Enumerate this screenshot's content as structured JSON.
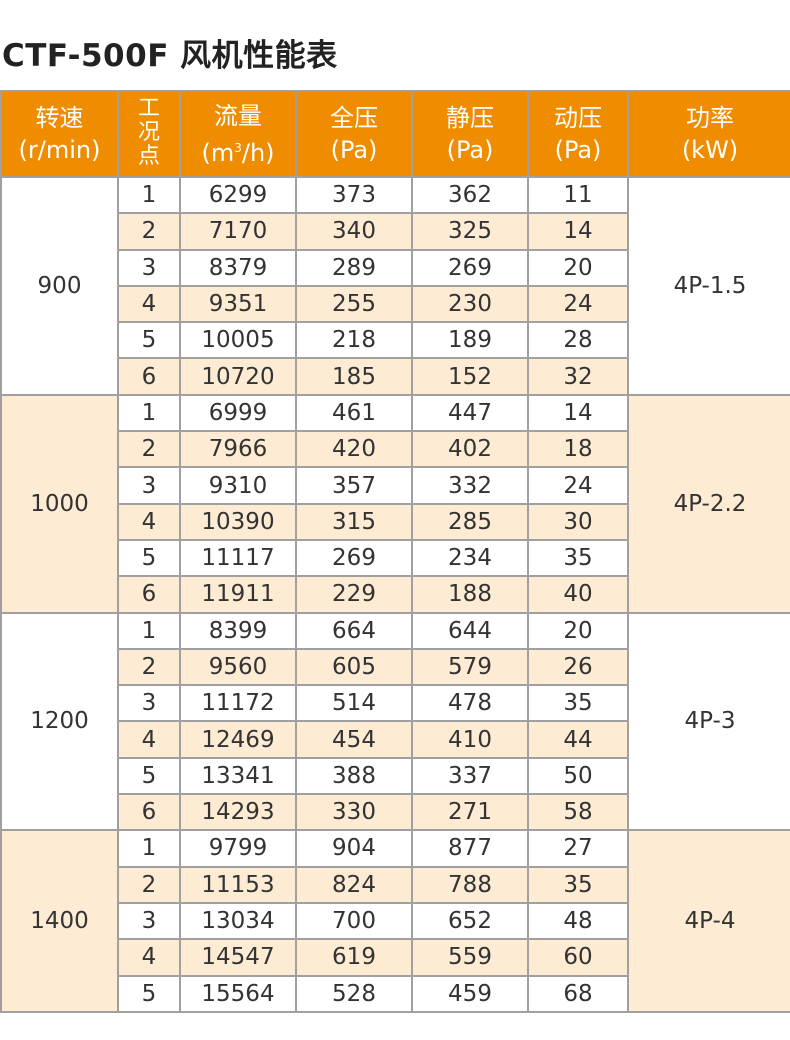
{
  "title": "CTF-500F 风机性能表",
  "colors": {
    "header_bg": "#f08c00",
    "alt_row_bg": "#fdebd3",
    "border": "#a0a0a0"
  },
  "headers": [
    {
      "label": "转速",
      "unit": "(r/min)"
    },
    {
      "label": "工况点",
      "unit": ""
    },
    {
      "label": "流量",
      "unit": "(m³/h)"
    },
    {
      "label": "全压",
      "unit": "(Pa)"
    },
    {
      "label": "静压",
      "unit": "(Pa)"
    },
    {
      "label": "动压",
      "unit": "(Pa)"
    },
    {
      "label": "功率",
      "unit": "(kW)"
    }
  ],
  "groups": [
    {
      "speed": "900",
      "power": "4P-1.5",
      "rows": [
        [
          "1",
          "6299",
          "373",
          "362",
          "11"
        ],
        [
          "2",
          "7170",
          "340",
          "325",
          "14"
        ],
        [
          "3",
          "8379",
          "289",
          "269",
          "20"
        ],
        [
          "4",
          "9351",
          "255",
          "230",
          "24"
        ],
        [
          "5",
          "10005",
          "218",
          "189",
          "28"
        ],
        [
          "6",
          "10720",
          "185",
          "152",
          "32"
        ]
      ]
    },
    {
      "speed": "1000",
      "power": "4P-2.2",
      "rows": [
        [
          "1",
          "6999",
          "461",
          "447",
          "14"
        ],
        [
          "2",
          "7966",
          "420",
          "402",
          "18"
        ],
        [
          "3",
          "9310",
          "357",
          "332",
          "24"
        ],
        [
          "4",
          "10390",
          "315",
          "285",
          "30"
        ],
        [
          "5",
          "11117",
          "269",
          "234",
          "35"
        ],
        [
          "6",
          "11911",
          "229",
          "188",
          "40"
        ]
      ]
    },
    {
      "speed": "1200",
      "power": "4P-3",
      "rows": [
        [
          "1",
          "8399",
          "664",
          "644",
          "20"
        ],
        [
          "2",
          "9560",
          "605",
          "579",
          "26"
        ],
        [
          "3",
          "11172",
          "514",
          "478",
          "35"
        ],
        [
          "4",
          "12469",
          "454",
          "410",
          "44"
        ],
        [
          "5",
          "13341",
          "388",
          "337",
          "50"
        ],
        [
          "6",
          "14293",
          "330",
          "271",
          "58"
        ]
      ]
    },
    {
      "speed": "1400",
      "power": "4P-4",
      "rows": [
        [
          "1",
          "9799",
          "904",
          "877",
          "27"
        ],
        [
          "2",
          "11153",
          "824",
          "788",
          "35"
        ],
        [
          "3",
          "13034",
          "700",
          "652",
          "48"
        ],
        [
          "4",
          "14547",
          "619",
          "559",
          "60"
        ],
        [
          "5",
          "15564",
          "528",
          "459",
          "68"
        ]
      ]
    }
  ]
}
